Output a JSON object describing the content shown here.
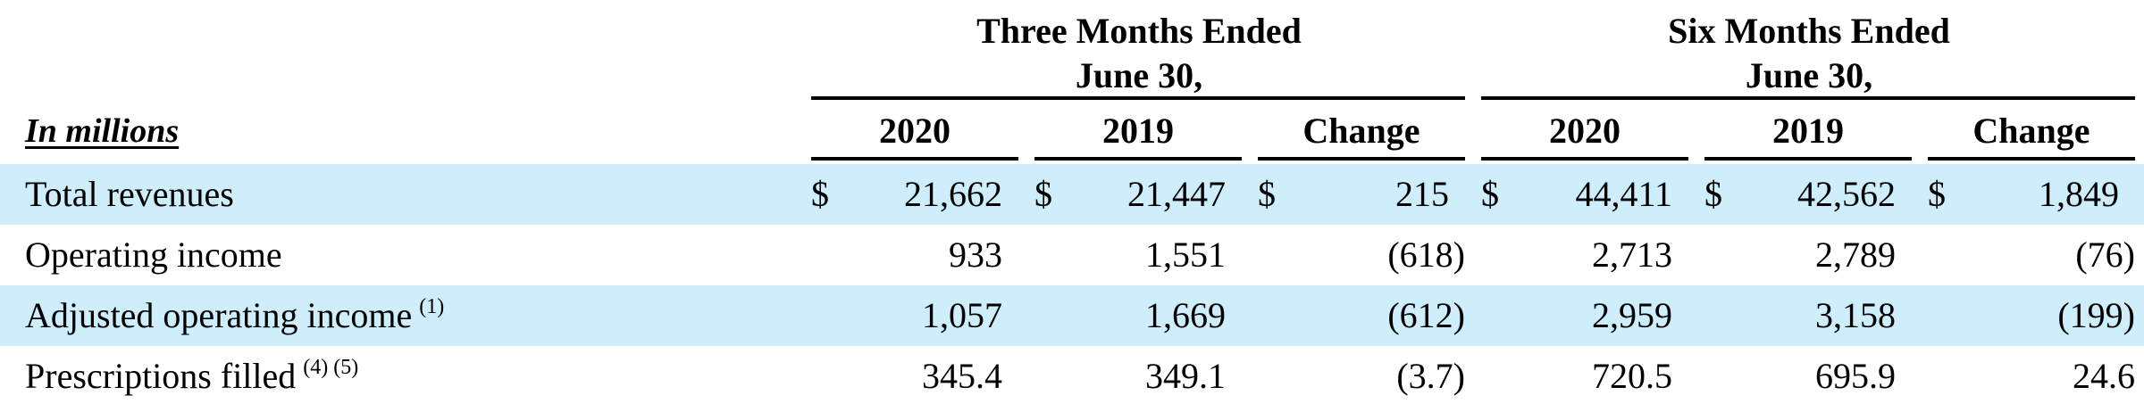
{
  "table": {
    "units_label": "In millions",
    "groups": [
      {
        "line1": "Three Months Ended",
        "line2": "June 30,"
      },
      {
        "line1": "Six Months Ended",
        "line2": "June 30,"
      }
    ],
    "column_headers": [
      "2020",
      "2019",
      "Change",
      "2020",
      "2019",
      "Change"
    ],
    "rows": [
      {
        "label": "Total revenues",
        "footnotes": "",
        "currency": "$",
        "values": [
          "21,662",
          "21,447",
          "215",
          "44,411",
          "42,562",
          "1,849"
        ]
      },
      {
        "label": "Operating income",
        "footnotes": "",
        "currency": "",
        "values": [
          "933",
          "1,551",
          "(618)",
          "2,713",
          "2,789",
          "(76)"
        ]
      },
      {
        "label": "Adjusted operating income",
        "footnotes": "(1)",
        "currency": "",
        "values": [
          "1,057",
          "1,669",
          "(612)",
          "2,959",
          "3,158",
          "(199)"
        ]
      },
      {
        "label": "Prescriptions filled",
        "footnotes": "(4) (5)",
        "currency": "",
        "values": [
          "345.4",
          "349.1",
          "(3.7)",
          "720.5",
          "695.9",
          "24.6"
        ]
      }
    ]
  },
  "colors": {
    "row_shading": "#cdeefa",
    "text": "#000000",
    "rules": "#000000"
  }
}
